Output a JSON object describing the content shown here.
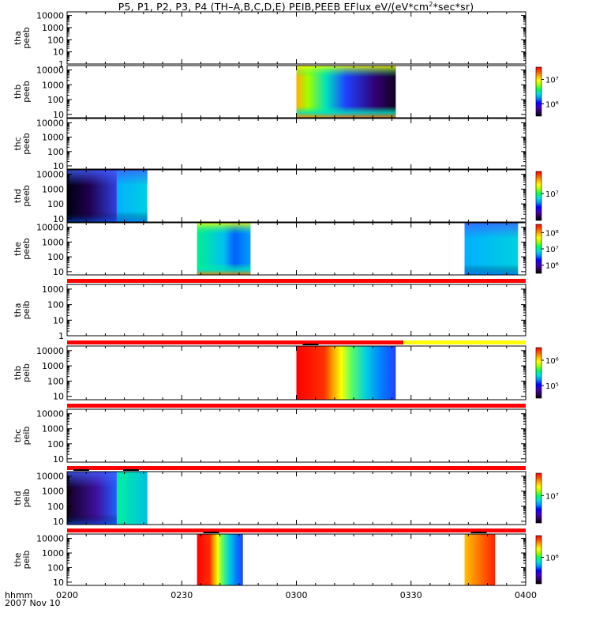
{
  "title": {
    "main": "P5, P1, P2, P3, P4 (TH–A,B,C,D,E) PEIB,PEEB EFlux eV/(eV*cm",
    "sup": "2",
    "tail": "*sec*sr)"
  },
  "footer": {
    "label": "hhmm",
    "date": "2007 Nov 10"
  },
  "colors": {
    "flag_red": "#ff0000",
    "flag_yellow": "#ffff00",
    "colorbar": [
      "#000000",
      "#300060",
      "#4000c0",
      "#0000ff",
      "#0090ff",
      "#00e0e0",
      "#00ff60",
      "#a0ff00",
      "#ffff00",
      "#ffb000",
      "#ff5000",
      "#ff0000"
    ]
  },
  "chart_data": {
    "type": "heatmap",
    "x_axis": {
      "range": [
        "0200",
        "0400"
      ],
      "ticks": [
        "0200",
        "0230",
        "0300",
        "0330",
        "0400"
      ],
      "label": "hhmm"
    },
    "panels": [
      {
        "name": "tha peeb",
        "label": [
          "tha",
          "peeb"
        ],
        "yrange": [
          1,
          20000
        ],
        "yticks": [
          "1",
          "10",
          "100",
          "1000",
          "10000"
        ],
        "colorbar": null,
        "flag": null,
        "blocks": []
      },
      {
        "name": "thb peeb",
        "label": [
          "thb",
          "peeb"
        ],
        "yrange": [
          6,
          20000
        ],
        "yticks": [
          "10",
          "100",
          "1000",
          "10000"
        ],
        "colorbar": {
          "ticks": [
            "10⁶",
            "10⁷"
          ]
        },
        "flag": null,
        "blocks": [
          {
            "start": "0300",
            "end": "0326",
            "pattern": "bright-core-green-rim"
          }
        ]
      },
      {
        "name": "thc peeb",
        "label": [
          "thc",
          "peeb"
        ],
        "yrange": [
          6,
          20000
        ],
        "yticks": [
          "10",
          "100",
          "1000",
          "10000"
        ],
        "colorbar": null,
        "flag": null,
        "blocks": []
      },
      {
        "name": "thd peeb",
        "label": [
          "thd",
          "peeb"
        ],
        "yrange": [
          6,
          20000
        ],
        "yticks": [
          "10",
          "100",
          "1000",
          "10000"
        ],
        "colorbar": {
          "ticks": [
            "10⁷"
          ]
        },
        "flag": null,
        "blocks": [
          {
            "start": "0200",
            "end": "0213",
            "pattern": "dark-blue"
          },
          {
            "start": "0213",
            "end": "0221",
            "pattern": "cyan-blue"
          }
        ]
      },
      {
        "name": "the peeb",
        "label": [
          "the",
          "peeb"
        ],
        "yrange": [
          6,
          20000
        ],
        "yticks": [
          "10",
          "100",
          "1000",
          "10000"
        ],
        "colorbar": {
          "ticks": [
            "10⁶",
            "10⁷",
            "10⁸"
          ]
        },
        "flag": null,
        "blocks": [
          {
            "start": "0234",
            "end": "0248",
            "pattern": "green-blue"
          },
          {
            "start": "0344",
            "end": "0358",
            "pattern": "cyan-blue"
          }
        ]
      },
      {
        "name": "tha peib",
        "label": [
          "tha",
          "peib"
        ],
        "yrange": [
          1,
          2000
        ],
        "yticks": [
          "1",
          "10",
          "100",
          "1000"
        ],
        "colorbar": null,
        "flag": {
          "segments": [
            {
              "start": "0200",
              "end": "0400",
              "color": "red"
            }
          ]
        },
        "blocks": []
      },
      {
        "name": "thb peib",
        "label": [
          "thb",
          "peib"
        ],
        "yrange": [
          6,
          20000
        ],
        "yticks": [
          "10",
          "100",
          "1000",
          "10000"
        ],
        "colorbar": {
          "ticks": [
            "10⁵",
            "10⁶"
          ]
        },
        "flag": {
          "segments": [
            {
              "start": "0200",
              "end": "0328",
              "color": "red"
            },
            {
              "start": "0328",
              "end": "0400",
              "color": "yellow"
            }
          ]
        },
        "blocks": [
          {
            "start": "0300",
            "end": "0326",
            "pattern": "ion-red-to-blue"
          }
        ]
      },
      {
        "name": "thc peib",
        "label": [
          "thc",
          "peib"
        ],
        "yrange": [
          6,
          20000
        ],
        "yticks": [
          "10",
          "100",
          "1000",
          "10000"
        ],
        "colorbar": null,
        "flag": {
          "segments": [
            {
              "start": "0200",
              "end": "0400",
              "color": "red"
            }
          ]
        },
        "blocks": []
      },
      {
        "name": "thd peib",
        "label": [
          "thd",
          "peib"
        ],
        "yrange": [
          6,
          20000
        ],
        "yticks": [
          "10",
          "100",
          "1000",
          "10000"
        ],
        "colorbar": {
          "ticks": [
            "10⁷"
          ]
        },
        "flag": {
          "segments": [
            {
              "start": "0200",
              "end": "0400",
              "color": "red"
            }
          ]
        },
        "blocks": [
          {
            "start": "0200",
            "end": "0213",
            "pattern": "dark-purple"
          },
          {
            "start": "0213",
            "end": "0221",
            "pattern": "green-cyan"
          }
        ]
      },
      {
        "name": "the peib",
        "label": [
          "the",
          "peib"
        ],
        "yrange": [
          6,
          20000
        ],
        "yticks": [
          "10",
          "100",
          "1000",
          "10000"
        ],
        "colorbar": {
          "ticks": [
            "10⁶"
          ]
        },
        "flag": {
          "segments": [
            {
              "start": "0200",
              "end": "0400",
              "color": "red"
            }
          ]
        },
        "blocks": [
          {
            "start": "0234",
            "end": "0246",
            "pattern": "ion-red-to-blue"
          },
          {
            "start": "0344",
            "end": "0352",
            "pattern": "ion-red-warm"
          }
        ]
      }
    ]
  }
}
